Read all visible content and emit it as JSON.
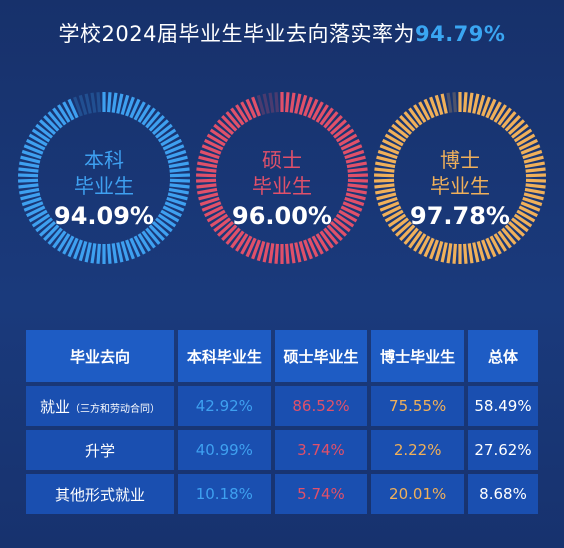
{
  "title": {
    "text": "学校2024届毕业生毕业去向落实率为",
    "highlight": "94.79%"
  },
  "colors": {
    "bachelor": "#3ea0f0",
    "master": "#e0506a",
    "doctor": "#f0b05a"
  },
  "rings": [
    {
      "line1": "本科",
      "line2": "毕业生",
      "value_text": "94.09%",
      "value": 94.09
    },
    {
      "line1": "硕士",
      "line2": "毕业生",
      "value_text": "96.00%",
      "value": 96.0
    },
    {
      "line1": "博士",
      "line2": "毕业生",
      "value_text": "97.78%",
      "value": 97.78
    }
  ],
  "table": {
    "headers": [
      "毕业去向",
      "本科毕业生",
      "硕士毕业生",
      "博士毕业生",
      "总体"
    ],
    "rows": [
      {
        "label": "就业",
        "note": "（三方和劳动合同）",
        "cells": [
          "42.92%",
          "86.52%",
          "75.55%",
          "58.49%"
        ]
      },
      {
        "label": "升学",
        "note": "",
        "cells": [
          "40.99%",
          "3.74%",
          "2.22%",
          "27.62%"
        ]
      },
      {
        "label": "其他形式就业",
        "note": "",
        "cells": [
          "10.18%",
          "5.74%",
          "20.01%",
          "8.68%"
        ]
      }
    ]
  },
  "chart_data": {
    "type": "pie",
    "title": "学校2024届毕业生毕业去向落实率为94.79%",
    "categories": [
      "本科毕业生",
      "硕士毕业生",
      "博士毕业生"
    ],
    "values": [
      94.09,
      96.0,
      97.78
    ],
    "overall": 94.79,
    "table": {
      "columns": [
        "毕业去向",
        "本科毕业生",
        "硕士毕业生",
        "博士毕业生",
        "总体"
      ],
      "rows": [
        [
          "就业（三方和劳动合同）",
          42.92,
          86.52,
          75.55,
          58.49
        ],
        [
          "升学",
          40.99,
          3.74,
          2.22,
          27.62
        ],
        [
          "其他形式就业",
          10.18,
          5.74,
          20.01,
          8.68
        ]
      ]
    }
  }
}
